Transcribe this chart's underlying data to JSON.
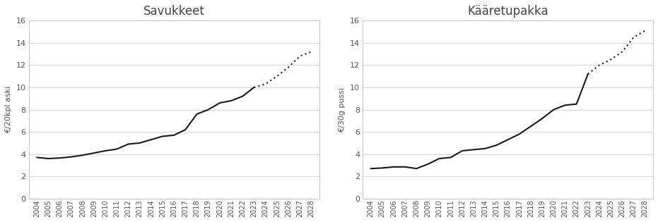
{
  "savukkeet_years_solid": [
    2004,
    2005,
    2006,
    2007,
    2008,
    2009,
    2010,
    2011,
    2012,
    2013,
    2014,
    2015,
    2016,
    2017,
    2018,
    2019,
    2020,
    2021,
    2022,
    2023
  ],
  "savukkeet_values_solid": [
    3.7,
    3.6,
    3.65,
    3.75,
    3.9,
    4.1,
    4.3,
    4.45,
    4.9,
    5.0,
    5.3,
    5.6,
    5.7,
    6.2,
    7.6,
    8.0,
    8.6,
    8.8,
    9.2,
    10.0
  ],
  "savukkeet_years_dotted": [
    2023,
    2024,
    2025,
    2026,
    2027,
    2028
  ],
  "savukkeet_values_dotted": [
    10.0,
    10.3,
    11.0,
    11.8,
    12.8,
    13.2
  ],
  "kaaretupakka_years_solid": [
    2004,
    2005,
    2006,
    2007,
    2008,
    2009,
    2010,
    2011,
    2012,
    2013,
    2014,
    2015,
    2016,
    2017,
    2018,
    2019,
    2020,
    2021,
    2022,
    2023
  ],
  "kaaretupakka_values_solid": [
    2.7,
    2.75,
    2.85,
    2.85,
    2.7,
    3.1,
    3.6,
    3.7,
    4.3,
    4.4,
    4.5,
    4.8,
    5.3,
    5.8,
    6.5,
    7.2,
    8.0,
    8.4,
    8.5,
    11.2
  ],
  "kaaretupakka_years_dotted": [
    2023,
    2024,
    2025,
    2026,
    2027,
    2028
  ],
  "kaaretupakka_values_dotted": [
    11.2,
    12.0,
    12.5,
    13.2,
    14.5,
    15.1
  ],
  "title_left": "Savukkeet",
  "title_right": "Kääretupakka",
  "ylabel_left": "€/20kpl aski",
  "ylabel_right": "€/30g pussi",
  "ylim": [
    0,
    16
  ],
  "yticks": [
    0,
    2,
    4,
    6,
    8,
    10,
    12,
    14,
    16
  ],
  "line_color": "#1a1a1a",
  "bg_color": "#ffffff",
  "grid_color": "#d0d0d0",
  "frame_color": "#c8c8c8",
  "tick_label_color": "#555555",
  "title_color": "#444444"
}
